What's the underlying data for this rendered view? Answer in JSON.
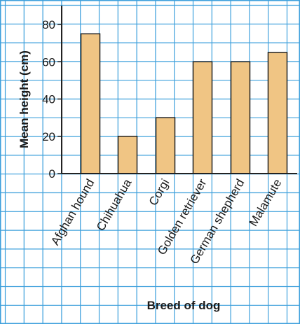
{
  "chart_data": {
    "type": "bar",
    "title": "",
    "categories": [
      "Afghan hound",
      "Chihuahua",
      "Corgi",
      "Golden retriever",
      "German shepherd",
      "Malamute"
    ],
    "values": [
      75,
      20,
      30,
      60,
      60,
      65
    ],
    "xlabel": "Breed of dog",
    "ylabel": "Mean height (cm)",
    "ylim": [
      0,
      80
    ],
    "yticks": [
      "0",
      "20",
      "40",
      "60",
      "80"
    ],
    "grid": true,
    "colors": {
      "bar_fill": "#f0c584",
      "bar_stroke": "#222222",
      "grid": "#3ea0dc",
      "background": "#ffffff"
    }
  }
}
